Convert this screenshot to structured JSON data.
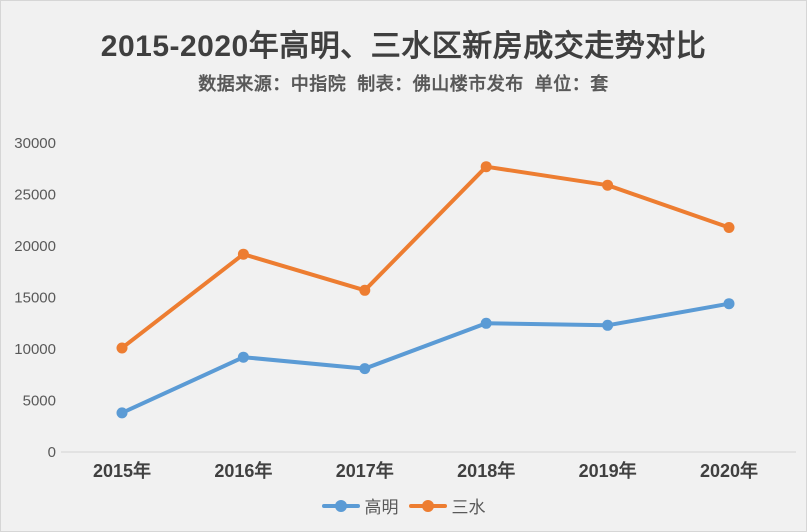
{
  "header": {
    "title": "2015-2020年高明、三水区新房成交走势对比",
    "subtitle": "数据来源：中指院  制表：佛山楼市发布  单位：套"
  },
  "colors": {
    "background": "#f1f1f1",
    "title_text": "#3f3f3f",
    "subtitle_text": "#595959",
    "axis_line": "#d9d9d9",
    "ytick_text": "#595959",
    "xtick_text": "#404040",
    "series_gaoming": "#5B9BD5",
    "series_sanshui": "#ED7D31"
  },
  "chart_data": {
    "type": "line",
    "title": "2015-2020年高明、三水区新房成交走势对比",
    "subtitle": "数据来源：中指院  制表：佛山楼市发布  单位：套",
    "categories": [
      "2015年",
      "2016年",
      "2017年",
      "2018年",
      "2019年",
      "2020年"
    ],
    "series": [
      {
        "name": "高明",
        "color": "#5B9BD5",
        "values": [
          3800,
          9200,
          8100,
          12500,
          12300,
          14400
        ]
      },
      {
        "name": "三水",
        "color": "#ED7D31",
        "values": [
          10100,
          19200,
          15700,
          27700,
          25900,
          21800
        ]
      }
    ],
    "xlabel": "",
    "ylabel": "",
    "unit": "套",
    "ylim": [
      0,
      30000
    ],
    "ytick_step": 5000,
    "yticks": [
      0,
      5000,
      10000,
      15000,
      20000,
      25000,
      30000
    ],
    "grid": false,
    "legend_position": "bottom",
    "marker": "circle"
  },
  "legend": {
    "items": [
      {
        "label": "高明",
        "color": "#5B9BD5"
      },
      {
        "label": "三水",
        "color": "#ED7D31"
      }
    ]
  }
}
